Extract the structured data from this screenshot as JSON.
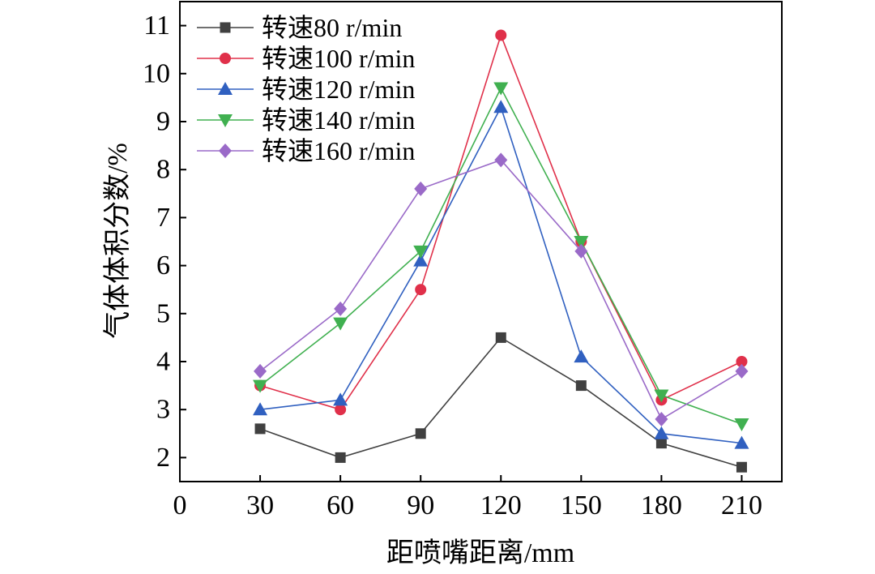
{
  "chart_data": {
    "type": "line",
    "xlabel": "距喷嘴距离/mm",
    "ylabel": "气体体积分数/%",
    "xlim": [
      0,
      225
    ],
    "ylim": [
      1.5,
      11.5
    ],
    "xticks": [
      0,
      30,
      60,
      90,
      120,
      150,
      180,
      210
    ],
    "yticks": [
      2,
      3,
      4,
      5,
      6,
      7,
      8,
      9,
      10,
      11
    ],
    "legend_position": "top-left",
    "grid": false,
    "x": [
      30,
      60,
      90,
      120,
      150,
      180,
      210
    ],
    "series": [
      {
        "name": "转速80 r/min",
        "color": "#404040",
        "marker": "square",
        "values": [
          2.6,
          2.0,
          2.5,
          4.5,
          3.5,
          2.3,
          1.8
        ]
      },
      {
        "name": "转速100 r/min",
        "color": "#e0304a",
        "marker": "circle",
        "values": [
          3.5,
          3.0,
          5.5,
          10.8,
          6.5,
          3.2,
          4.0
        ]
      },
      {
        "name": "转速120 r/min",
        "color": "#3060c0",
        "marker": "triangle-up",
        "values": [
          3.0,
          3.2,
          6.1,
          9.3,
          4.1,
          2.5,
          2.3
        ]
      },
      {
        "name": "转速140 r/min",
        "color": "#40b050",
        "marker": "triangle-down",
        "values": [
          3.5,
          4.8,
          6.3,
          9.7,
          6.5,
          3.3,
          2.7
        ]
      },
      {
        "name": "转速160 r/min",
        "color": "#9a6ac8",
        "marker": "diamond",
        "values": [
          3.8,
          5.1,
          7.6,
          8.2,
          6.3,
          2.8,
          3.8
        ]
      }
    ]
  }
}
